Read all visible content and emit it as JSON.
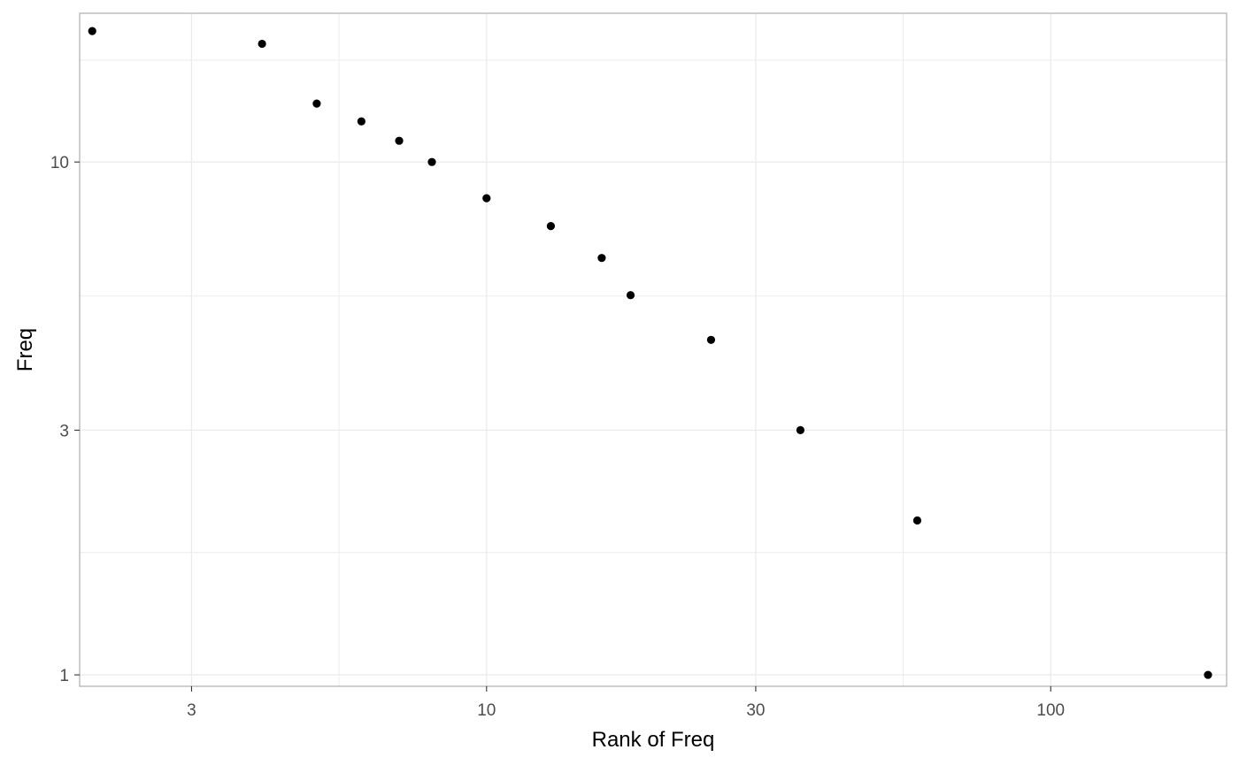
{
  "chart_data": {
    "type": "scatter",
    "title": "",
    "xlabel": "Rank of Freq",
    "ylabel": "Freq",
    "x_scale": "log10",
    "y_scale": "log10",
    "xlim": [
      1.9,
      205
    ],
    "ylim": [
      0.95,
      19.5
    ],
    "x_ticks": [
      3,
      10,
      30,
      100
    ],
    "x_tick_labels": [
      "3",
      "10",
      "30",
      "100"
    ],
    "x_minor_ticks": [
      5.477,
      54.77
    ],
    "y_ticks": [
      1,
      3,
      10
    ],
    "y_tick_labels": [
      "1",
      "3",
      "10"
    ],
    "y_minor_ticks": [
      1.732,
      5.477,
      15.8
    ],
    "grid": true,
    "legend": "none",
    "points": [
      {
        "x": 2,
        "y": 18
      },
      {
        "x": 4,
        "y": 17
      },
      {
        "x": 5,
        "y": 13
      },
      {
        "x": 6,
        "y": 12
      },
      {
        "x": 7,
        "y": 11
      },
      {
        "x": 8,
        "y": 10
      },
      {
        "x": 10,
        "y": 8.5
      },
      {
        "x": 13,
        "y": 7.5
      },
      {
        "x": 16,
        "y": 6.5
      },
      {
        "x": 18,
        "y": 5.5
      },
      {
        "x": 25,
        "y": 4.5
      },
      {
        "x": 36,
        "y": 3
      },
      {
        "x": 58,
        "y": 2
      },
      {
        "x": 190,
        "y": 1
      }
    ]
  },
  "colors": {
    "point": "#000000",
    "grid": "#ebebeb",
    "panel_border": "#b3b3b3",
    "tick_text": "#4d4d4d"
  }
}
